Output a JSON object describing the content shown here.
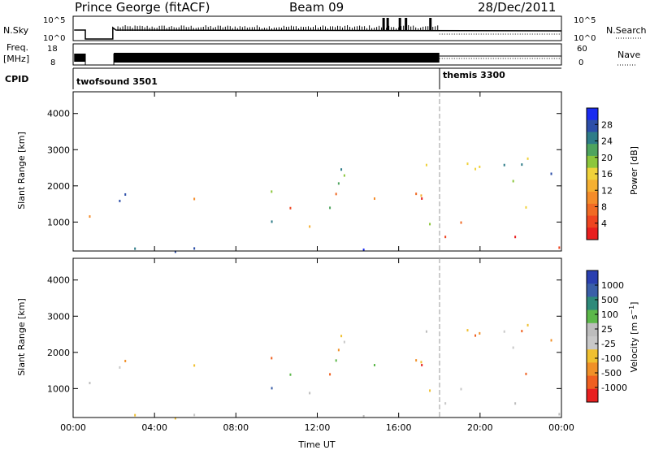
{
  "header": {
    "station": "Prince George (fitACF)",
    "beam": "Beam 09",
    "date": "28/Dec/2011"
  },
  "strips": {
    "nsky_label": "N.Sky",
    "nsky_ticks": [
      "10^5",
      "10^0"
    ],
    "nsearch_label": "N.Search",
    "nsearch_ticks": [
      "10^5",
      "10^0"
    ],
    "freq_label": "Freq.",
    "freq_unit": "[MHz]",
    "freq_ticks": [
      "18",
      "8"
    ],
    "nave_label": "Nave",
    "nave_ticks": [
      "60",
      "0"
    ],
    "cpid_label": "CPID",
    "cpid_segments": [
      {
        "name": "twofsound 3501",
        "start_hour": 0,
        "end_hour": 18
      },
      {
        "name": "themis 3300",
        "start_hour": 18,
        "end_hour": 24
      }
    ]
  },
  "chart_data": [
    {
      "type": "heatmap",
      "panel": "power",
      "ylabel": "Slant Range [km]",
      "xlabel": "Time UT",
      "x_ticks": [
        "00:00",
        "04:00",
        "08:00",
        "12:00",
        "16:00",
        "20:00",
        "00:00"
      ],
      "xlim_hours": [
        0,
        24
      ],
      "y_ticks": [
        1000,
        2000,
        3000,
        4000
      ],
      "ylim": [
        200,
        4600
      ],
      "colorbar_label": "Power [dB]",
      "colorbar_ticks": [
        4,
        8,
        12,
        16,
        20,
        24,
        28
      ],
      "colorbar_colors": [
        "#1a2bf0",
        "#2c4ea8",
        "#2e7c88",
        "#4ea45e",
        "#8cc63c",
        "#f0d23a",
        "#f5b032",
        "#f48c2a",
        "#f06a24",
        "#ee4420",
        "#e81e1e"
      ]
    },
    {
      "type": "heatmap",
      "panel": "velocity",
      "ylabel": "Slant Range [km]",
      "xlabel": "Time UT",
      "x_ticks": [
        "00:00",
        "04:00",
        "08:00",
        "12:00",
        "16:00",
        "20:00",
        "00:00"
      ],
      "xlim_hours": [
        0,
        24
      ],
      "y_ticks": [
        1000,
        2000,
        3000,
        4000
      ],
      "ylim": [
        200,
        4600
      ],
      "colorbar_label": "Velocity [m s^-1]",
      "colorbar_ticks": [
        1000,
        500,
        100,
        25,
        -25,
        -100,
        -500,
        -1000
      ],
      "colorbar_colors": [
        "#2a3fb0",
        "#3a5fa8",
        "#2e8a7a",
        "#5cb84a",
        "#bdbdbd",
        "#c8c8c8",
        "#f0c030",
        "#f09028",
        "#f06020",
        "#e82020"
      ]
    }
  ]
}
